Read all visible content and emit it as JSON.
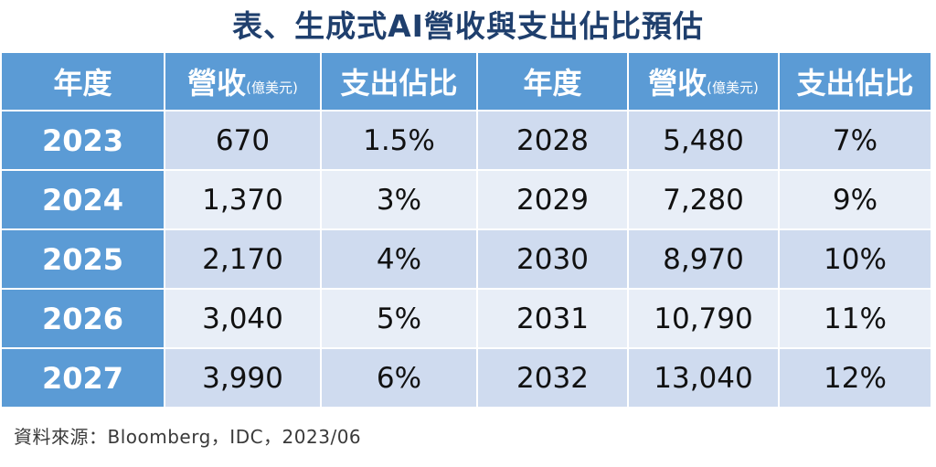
{
  "title": "表、生成式AI營收與支出佔比預估",
  "headers": {
    "year": "年度",
    "revenue": "營收",
    "revenue_unit": "(億美元)",
    "share": "支出佔比"
  },
  "left_rows": [
    {
      "year": "2023",
      "revenue": "670",
      "share": "1.5%"
    },
    {
      "year": "2024",
      "revenue": "1,370",
      "share": "3%"
    },
    {
      "year": "2025",
      "revenue": "2,170",
      "share": "4%"
    },
    {
      "year": "2026",
      "revenue": "3,040",
      "share": "5%"
    },
    {
      "year": "2027",
      "revenue": "3,990",
      "share": "6%"
    }
  ],
  "right_rows": [
    {
      "year": "2028",
      "revenue": "5,480",
      "share": "7%"
    },
    {
      "year": "2029",
      "revenue": "7,280",
      "share": "9%"
    },
    {
      "year": "2030",
      "revenue": "8,970",
      "share": "10%"
    },
    {
      "year": "2031",
      "revenue": "10,790",
      "share": "11%"
    },
    {
      "year": "2032",
      "revenue": "13,040",
      "share": "12%"
    }
  ],
  "source": "資料來源：Bloomberg，IDC，2023/06"
}
